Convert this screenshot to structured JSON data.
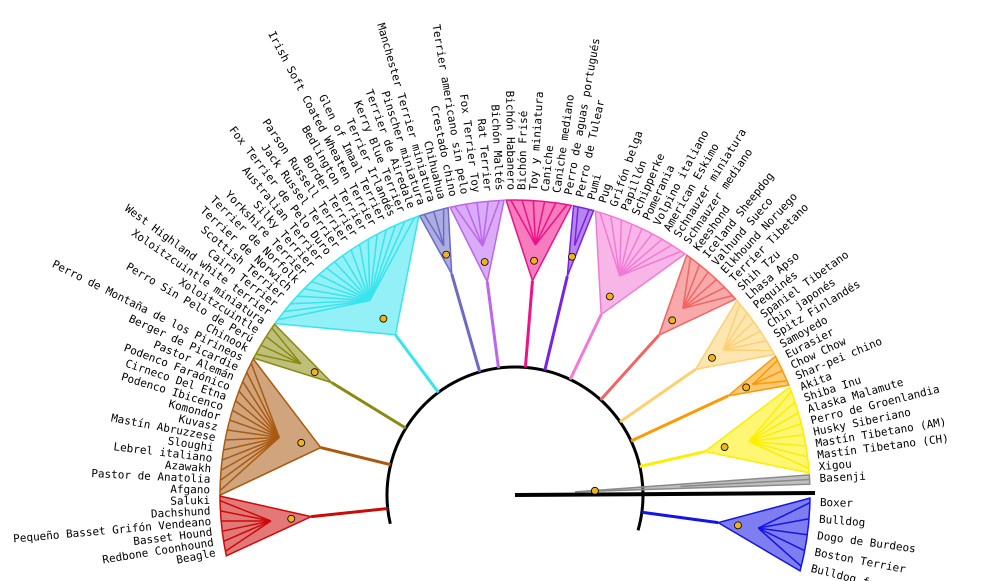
{
  "tree": {
    "leaves": [
      "Bulldog francés",
      "Boston Terrier",
      "Dogo de Burdeos",
      "Bulldog",
      "Boxer",
      "Basenji",
      "Xigou",
      "Mastín Tibetano (CH)",
      "Mastín Tibetano (AM)",
      "Husky Siberiano",
      "Perro de Groenlandia",
      "Alaska Malamute",
      "Shiba Inu",
      "Akita",
      "Shar-pei chino",
      "Chow Chow",
      "Eurasier",
      "Samoyedo",
      "Spitz Finlandés",
      "Chin japonés",
      "Spaniel Tibetano",
      "Pequinés",
      "Lhasa Apso",
      "Shih Tzu",
      "Terrier Tibetano",
      "Elkhound Noruego",
      "Valhund Sueco",
      "Iceland Sheepdog",
      "Keeshond",
      "Schnauzer mediano",
      "Schnauzer miniatura",
      "American Eskimo",
      "Volpino italiano",
      "Pomerania",
      "Schipperke",
      "Papillón",
      "Grifón belga",
      "Pug",
      "Pumi",
      "Perro de Tulear",
      "Perro de aguas portugués",
      "Caniche mediano",
      "Caniche",
      "Toy y miniatura",
      "Bichón Frisé",
      "Bichón Habanero",
      "Bichón Maltés",
      "Rat Terrier",
      "Fox Terrier Toy",
      "Terrier americano sin pelo",
      "Crestado chino",
      "Chihuahua",
      "Manchester Terrier miniatura",
      "Pinscher miniatura",
      "Terrier de Airedale",
      "Kerry Blue Terrier",
      "Terrier Irlandés",
      "Glen of Imaal Terrier",
      "Irish Soft Coated Wheaten Terrier",
      "Bedlington Terrier",
      "Border Terrier",
      "Parson Russell Terrier",
      "Jack Russel Terrier",
      "Fox Terrier de Pelo Duro",
      "Australian Terrier",
      "Silky Terrier",
      "Yorkshire Terrier",
      "Terrier de Norfolk",
      "Terrier de Norwich",
      "Scottish Terrier",
      "Cairn Terrier",
      "West Highland white terrier",
      "Xoloitzcuintle miniatura",
      "Xoloitzcuintle",
      "Perro Sin Pelo de Perú",
      "Chinook",
      "Perro de Montaña de los Pirineos",
      "Berger de Picardie",
      "Pastor Alemán",
      "Podenco Faraónico",
      "Cirneco Del Etna",
      "Podenco Ibicenco",
      "Komondor",
      "Kuvasz",
      "Mastín Abruzzese",
      "Sloughi",
      "Lebrel italiano",
      "Azawakh",
      "Pastor de Anatolia",
      "Afgano",
      "Saluki",
      "Dachshund",
      "Pequeño Basset Grifón Vendeano",
      "Basset Hound",
      "Redbone Coonhound",
      "Beagle"
    ]
  }
}
